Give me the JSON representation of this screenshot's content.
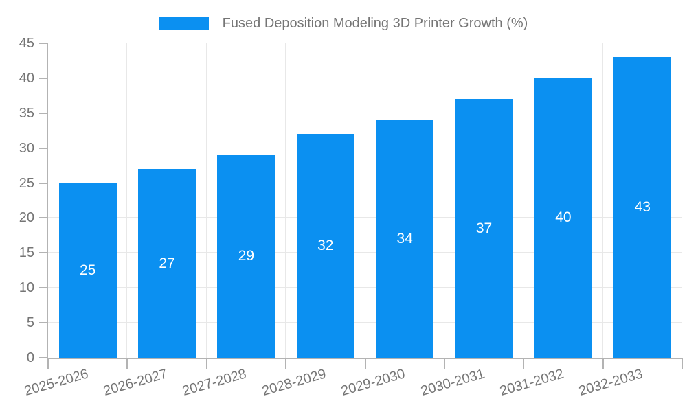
{
  "chart_data": {
    "type": "bar",
    "title": "Fused Deposition Modeling 3D Printer Growth (%)",
    "categories": [
      "2025-2026",
      "2026-2027",
      "2027-2028",
      "2028-2029",
      "2029-2030",
      "2030-2031",
      "2031-2032",
      "2032-2033"
    ],
    "values": [
      25,
      27,
      29,
      32,
      34,
      37,
      40,
      43
    ],
    "bar_value_labels": [
      "25",
      "27",
      "29",
      "32",
      "34",
      "37",
      "40",
      "43"
    ],
    "xlabel": "",
    "ylabel": "",
    "ylim": [
      0,
      45
    ],
    "ytick_values": [
      0,
      5,
      10,
      15,
      20,
      25,
      30,
      35,
      40,
      45
    ],
    "grid": true,
    "x_label_rotation_deg": -16,
    "legend": {
      "position": "top-center",
      "entries": [
        "Fused Deposition Modeling 3D Printer Growth (%)"
      ]
    },
    "colors": {
      "bar": "#0b90f1",
      "bar_value_text": "#ffffff",
      "axis_text": "#757575",
      "grid_line": "#e8e8e8",
      "axis_line": "#b3b3b3",
      "background": "#ffffff"
    }
  }
}
